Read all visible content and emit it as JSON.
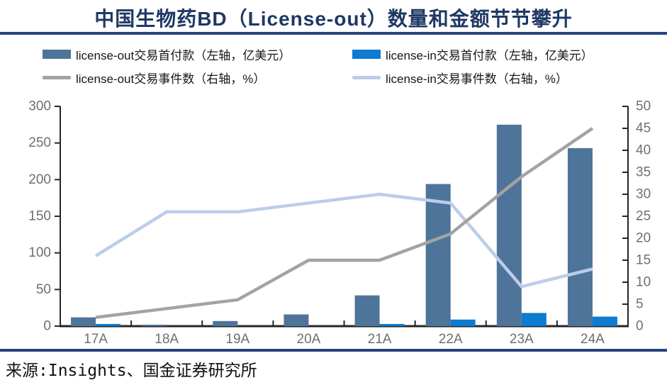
{
  "title": "中国生物药BD（License-out）数量和金额节节攀升",
  "source": "来源:Insights、国金证券研究所",
  "colors": {
    "title_navy": "#1F3864",
    "rule_navy": "#27447E",
    "bar_license_out": "#4E749A",
    "bar_license_in": "#0C7BD0",
    "line_license_out": "#A3A3A3",
    "line_license_in": "#BCCDEA",
    "axis_line": "#262626",
    "tick_text": "#6F6F6F"
  },
  "chart_data": {
    "type": "bar",
    "subtype": "grouped bars with two overlay lines (dual axis)",
    "categories": [
      "17A",
      "18A",
      "19A",
      "20A",
      "21A",
      "22A",
      "23A",
      "24A"
    ],
    "series": [
      {
        "name": "license-out交易首付款（左轴，亿美元）",
        "type": "bar",
        "axis": "left",
        "color": "#4E749A",
        "values": [
          12,
          2,
          7,
          16,
          42,
          194,
          275,
          243
        ]
      },
      {
        "name": "license-in交易首付款（左轴，亿美元）",
        "type": "bar",
        "axis": "left",
        "color": "#0C7BD0",
        "values": [
          3,
          0,
          0,
          0,
          3,
          9,
          18,
          13
        ]
      },
      {
        "name": "license-out交易事件数（右轴，%）",
        "type": "line",
        "axis": "right",
        "color": "#A3A3A3",
        "values": [
          2,
          4,
          6,
          15,
          15,
          21,
          34,
          45
        ]
      },
      {
        "name": "license-in交易事件数（右轴，%）",
        "type": "line",
        "axis": "right",
        "color": "#BCCDEA",
        "values": [
          16,
          26,
          26,
          28,
          30,
          28,
          9,
          13
        ]
      }
    ],
    "left_axis": {
      "min": 0,
      "max": 300,
      "step": 50,
      "ticks": [
        0,
        50,
        100,
        150,
        200,
        250,
        300
      ]
    },
    "right_axis": {
      "min": 0,
      "max": 50,
      "step": 5,
      "ticks": [
        0,
        5,
        10,
        15,
        20,
        25,
        30,
        35,
        40,
        45,
        50
      ]
    },
    "grid": false,
    "legend_position": "top"
  }
}
